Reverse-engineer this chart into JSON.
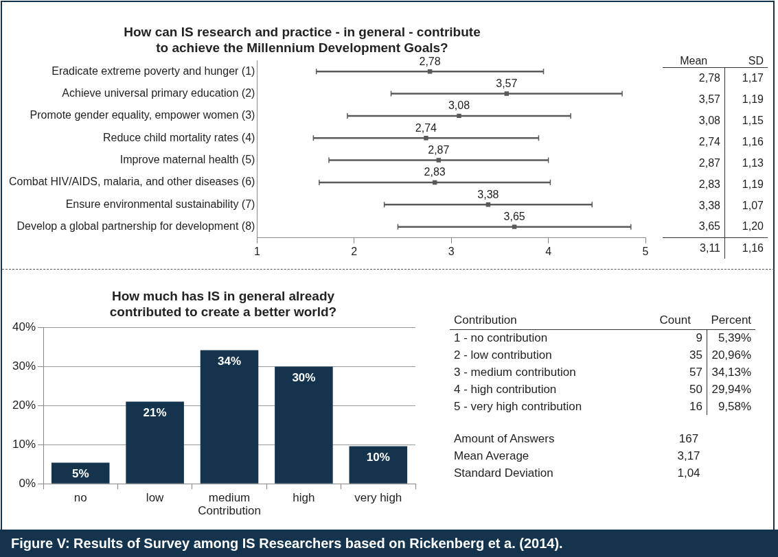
{
  "chart_data": [
    {
      "type": "scatter",
      "orientation": "horizontal",
      "title": "How can IS research and practice - in general - contribute to achieve the Millennium Development Goals?",
      "categories": [
        "Eradicate extreme poverty and hunger (1)",
        "Achieve universal primary education (2)",
        "Promote gender equality, empower women (3)",
        "Reduce child mortality rates (4)",
        "Improve maternal health (5)",
        "Combat HIV/AIDS, malaria, and other diseases (6)",
        "Ensure environmental sustainability (7)",
        "Develop a global partnership for development (8)"
      ],
      "values": [
        2.78,
        3.57,
        3.08,
        2.74,
        2.87,
        2.83,
        3.38,
        3.65
      ],
      "errors": [
        1.17,
        1.19,
        1.15,
        1.16,
        1.13,
        1.19,
        1.07,
        1.2
      ],
      "value_labels": [
        "2,78",
        "3,57",
        "3,08",
        "2,74",
        "2,87",
        "2,83",
        "3,38",
        "3,65"
      ],
      "color": "#595959",
      "xlim": [
        1,
        5
      ],
      "xticks": [
        1,
        2,
        3,
        4,
        5
      ],
      "grid": false,
      "legend": false
    },
    {
      "type": "other",
      "annotations": [
        "Mean",
        "SD",
        "2,78",
        "1,17",
        "3,57",
        "1,19",
        "3,08",
        "1,15",
        "2,74",
        "1,16",
        "2,87",
        "1,13",
        "2,83",
        "1,19",
        "3,38",
        "1,07",
        "3,65",
        "1,20",
        "3,11",
        "1,16"
      ]
    },
    {
      "type": "bar",
      "title": "How much has IS in general already contributed to create a better world?",
      "xlabel": "Contribution",
      "categories": [
        "no",
        "low",
        "medium",
        "high",
        "very high"
      ],
      "values": [
        5.39,
        20.96,
        34.13,
        29.94,
        9.58
      ],
      "value_labels": [
        "5%",
        "21%",
        "34%",
        "30%",
        "10%"
      ],
      "color": "#14344e",
      "ylim": [
        0,
        40
      ],
      "yticks": [
        {
          "value": 0,
          "label": "0%"
        },
        {
          "value": 10,
          "label": "10%"
        },
        {
          "value": 20,
          "label": "20%"
        },
        {
          "value": 30,
          "label": "30%"
        },
        {
          "value": 40,
          "label": "40%"
        }
      ],
      "grid": "y",
      "legend": false
    },
    {
      "type": "other",
      "subtitle": "Figure V: Results of Survey among IS Researchers based on Rickenberg et a. (2014).",
      "annotations": [
        "Contribution",
        "Count",
        "Percent",
        "1 - no contribution",
        "9",
        "5,39%",
        "2 - low contribution",
        "35",
        "20,96%",
        "3 - medium contribution",
        "57",
        "34,13%",
        "4 - high contribution",
        "50",
        "29,94%",
        "5 - very high contribution",
        "16",
        "9,58%",
        "Amount of Answers",
        "167",
        "Mean Average",
        "3,17",
        "Standard Deviation",
        "1,04"
      ]
    }
  ]
}
